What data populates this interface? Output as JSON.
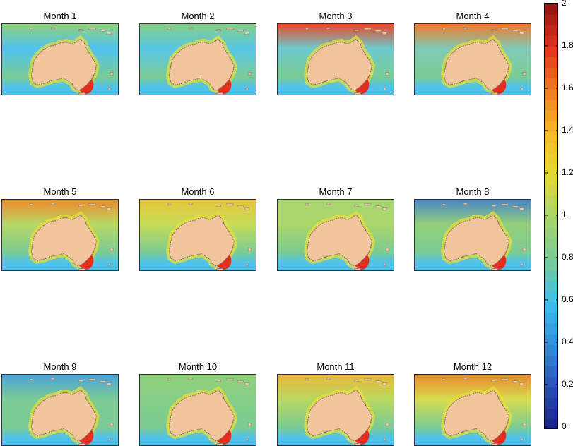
{
  "chart_data": {
    "type": "heatmap",
    "panels": [
      {
        "title": "Month 1",
        "tint": "#4fc3f0",
        "north": "#8fd07a"
      },
      {
        "title": "Month 2",
        "tint": "#58c7e8",
        "north": "#86cf86"
      },
      {
        "title": "Month 3",
        "tint": "#6ccad0",
        "north": "#e84a24"
      },
      {
        "title": "Month 4",
        "tint": "#7fcbb8",
        "north": "#f07a28"
      },
      {
        "title": "Month 5",
        "tint": "#b7d864",
        "north": "#ef8a2a"
      },
      {
        "title": "Month 6",
        "tint": "#c6dc58",
        "north": "#e8c63a"
      },
      {
        "title": "Month 7",
        "tint": "#a9d66a",
        "north": "#a8d570"
      },
      {
        "title": "Month 8",
        "tint": "#92d07a",
        "north": "#4a86c8"
      },
      {
        "title": "Month 9",
        "tint": "#7acb94",
        "north": "#4aa2d8"
      },
      {
        "title": "Month 10",
        "tint": "#86ce86",
        "north": "#90d07a"
      },
      {
        "title": "Month 11",
        "tint": "#b8d860",
        "north": "#e8b83a"
      },
      {
        "title": "Month 12",
        "tint": "#d8dc50",
        "north": "#e88a2a"
      }
    ],
    "colorbar": {
      "min": 0,
      "max": 2,
      "ticks": [
        "0",
        "0.2",
        "0.4",
        "0.6",
        "0.8",
        "1",
        "1.2",
        "1.4",
        "1.6",
        "1.8",
        "2"
      ],
      "colors": [
        "#1a1f87",
        "#2a4fb8",
        "#2f8fd8",
        "#3cc0ee",
        "#7acb94",
        "#a8d56a",
        "#e6dc2e",
        "#f7b824",
        "#f07a1e",
        "#e2301c",
        "#8e1212"
      ]
    },
    "land_color": "#f2c49c"
  }
}
